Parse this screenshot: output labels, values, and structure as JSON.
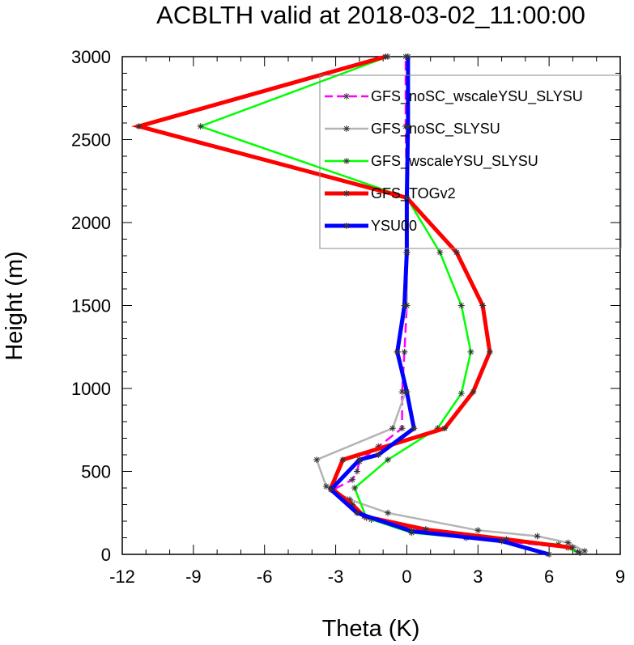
{
  "chart_data": {
    "type": "line",
    "title": "ACBLTH valid at 2018-03-02_11:00:00",
    "xlabel": "Theta (K)",
    "ylabel": "Height (m)",
    "xlim": [
      -12,
      9
    ],
    "ylim": [
      0,
      3000
    ],
    "xticks": [
      "-12",
      "-9",
      "-6",
      "-3",
      "0",
      "3",
      "6",
      "9"
    ],
    "yticks": [
      "0",
      "500",
      "1000",
      "1500",
      "2000",
      "2500",
      "3000"
    ],
    "grid": false,
    "legend_position": "top-right",
    "series": [
      {
        "name": "GFS_noSC_wscaleYSU_SLYSU",
        "color": "#ff00ff",
        "dash": "dashed",
        "points": [
          [
            7.3,
            10
          ],
          [
            6.8,
            40
          ],
          [
            4.4,
            75
          ],
          [
            2.5,
            100
          ],
          [
            0.8,
            150
          ],
          [
            -1.5,
            210
          ],
          [
            -2.1,
            260
          ],
          [
            -2.5,
            330
          ],
          [
            -3.1,
            390
          ],
          [
            -2.3,
            450
          ],
          [
            -2.1,
            500
          ],
          [
            -2.0,
            560
          ],
          [
            -1.2,
            650
          ],
          [
            -0.2,
            760
          ],
          [
            -0.2,
            980
          ],
          [
            -0.1,
            1220
          ],
          [
            0.0,
            1500
          ],
          [
            0.0,
            1820
          ],
          [
            0.0,
            2150
          ],
          [
            -0.05,
            2580
          ],
          [
            -0.05,
            3000
          ]
        ]
      },
      {
        "name": "GFS_noSC_SLYSU",
        "color": "#b4b4b4",
        "dash": "solid",
        "points": [
          [
            7.5,
            20
          ],
          [
            6.8,
            70
          ],
          [
            5.5,
            110
          ],
          [
            3.0,
            145
          ],
          [
            -0.8,
            250
          ],
          [
            -2.4,
            330
          ],
          [
            -3.4,
            410
          ],
          [
            -3.8,
            570
          ],
          [
            -0.6,
            760
          ],
          [
            -0.05,
            980
          ],
          [
            -0.4,
            1220
          ],
          [
            0.0,
            1500
          ],
          [
            0.0,
            1820
          ],
          [
            0.0,
            2150
          ],
          [
            0.05,
            2580
          ],
          [
            0.05,
            3000
          ]
        ]
      },
      {
        "name": "GFS_wscaleYSU_SLYSU",
        "color": "#00ff00",
        "dash": "solid",
        "points": [
          [
            7.2,
            15
          ],
          [
            6.4,
            60
          ],
          [
            2.5,
            100
          ],
          [
            0.2,
            130
          ],
          [
            -1.7,
            220
          ],
          [
            -2.2,
            400
          ],
          [
            -0.8,
            570
          ],
          [
            1.3,
            760
          ],
          [
            2.3,
            970
          ],
          [
            2.7,
            1220
          ],
          [
            2.3,
            1500
          ],
          [
            1.4,
            1820
          ],
          [
            0.0,
            2150
          ],
          [
            -8.7,
            2580
          ],
          [
            -0.8,
            3000
          ]
        ]
      },
      {
        "name": "GFS_TOGv2",
        "color": "#ff0000",
        "dash": "solid",
        "points": [
          [
            7.0,
            40
          ],
          [
            4.2,
            90
          ],
          [
            0.8,
            150
          ],
          [
            -1.8,
            230
          ],
          [
            -2.3,
            300
          ],
          [
            -3.2,
            400
          ],
          [
            -2.7,
            570
          ],
          [
            1.6,
            760
          ],
          [
            2.8,
            980
          ],
          [
            3.5,
            1220
          ],
          [
            3.2,
            1500
          ],
          [
            2.1,
            1820
          ],
          [
            0.0,
            2150
          ],
          [
            -11.3,
            2580
          ],
          [
            -0.9,
            3000
          ]
        ]
      },
      {
        "name": "YSU00",
        "color": "#0000ff",
        "dash": "solid",
        "points": [
          [
            6.0,
            0
          ],
          [
            4.0,
            80
          ],
          [
            0.2,
            140
          ],
          [
            -2.1,
            250
          ],
          [
            -3.2,
            390
          ],
          [
            -2.0,
            570
          ],
          [
            -1.2,
            600
          ],
          [
            0.3,
            760
          ],
          [
            0.0,
            980
          ],
          [
            -0.4,
            1220
          ],
          [
            -0.1,
            1500
          ],
          [
            0.0,
            1820
          ],
          [
            0.0,
            2150
          ],
          [
            0.05,
            2580
          ],
          [
            0.05,
            3000
          ]
        ]
      }
    ]
  }
}
